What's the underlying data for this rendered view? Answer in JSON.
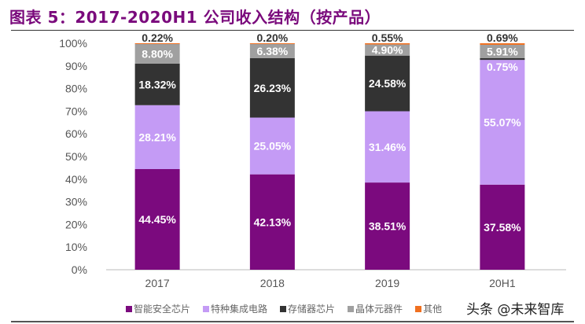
{
  "chart_data": {
    "type": "bar",
    "stacked": true,
    "title": "图表 5：2017-2020H1 公司收入结构（按产品）",
    "categories": [
      "2017",
      "2018",
      "2019",
      "20H1"
    ],
    "ylim": [
      0,
      100
    ],
    "yticks": [
      "0%",
      "10%",
      "20%",
      "30%",
      "40%",
      "50%",
      "60%",
      "70%",
      "80%",
      "90%",
      "100%"
    ],
    "grid": false,
    "legend_position": "bottom",
    "series": [
      {
        "name": "智能安全芯片",
        "color": "#7b0a7e",
        "values": [
          44.45,
          42.13,
          38.51,
          37.58
        ],
        "labels": [
          "44.45%",
          "42.13%",
          "38.51%",
          "37.58%"
        ]
      },
      {
        "name": "特种集成电路",
        "color": "#c49bf5",
        "values": [
          28.21,
          25.05,
          31.46,
          55.07
        ],
        "labels": [
          "28.21%",
          "25.05%",
          "31.46%",
          "55.07%"
        ]
      },
      {
        "name": "存储器芯片",
        "color": "#333333",
        "values": [
          18.32,
          26.23,
          24.58,
          0.75
        ],
        "labels": [
          "18.32%",
          "26.23%",
          "24.58%",
          "0.75%"
        ]
      },
      {
        "name": "晶体元器件",
        "color": "#a0a0a0",
        "values": [
          8.8,
          6.38,
          4.9,
          5.91
        ],
        "labels": [
          "8.80%",
          "6.38%",
          "4.90%",
          "5.91%"
        ]
      },
      {
        "name": "其他",
        "color": "#f07020",
        "values": [
          0.22,
          0.2,
          0.55,
          0.69
        ],
        "labels": [
          "0.22%",
          "0.20%",
          "0.55%",
          "0.69%"
        ]
      }
    ]
  },
  "watermark": "头条 @未来智库"
}
